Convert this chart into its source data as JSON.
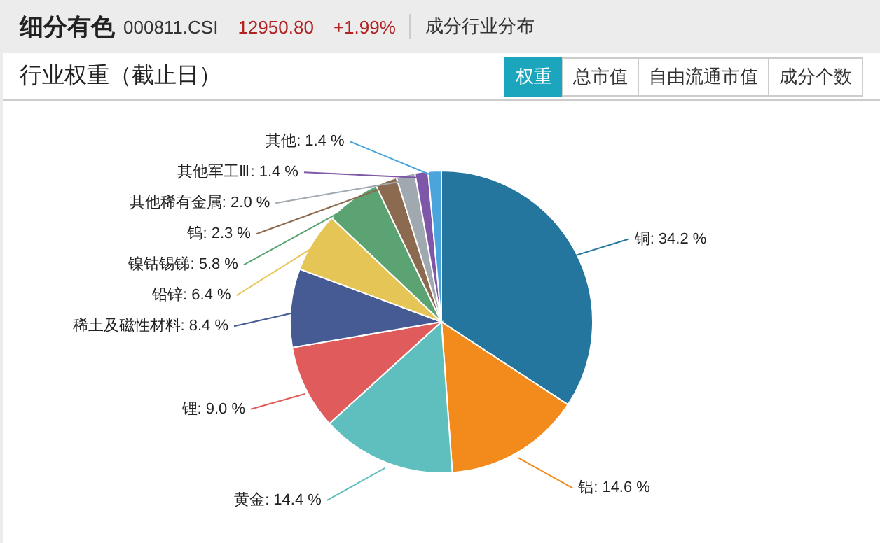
{
  "chart_data": {
    "type": "pie",
    "title": "细分有色",
    "subtitle": "行业权重（截止日）",
    "annotations": [
      "000811.CSI",
      "12950.80",
      "+1.99%",
      "成分行业分布",
      "权重",
      "总市值",
      "自由流通市值",
      "成分个数"
    ],
    "categories": [
      "铜",
      "铝",
      "黄金",
      "锂",
      "稀土及磁性材料",
      "铅锌",
      "镍钴锡锑",
      "钨",
      "其他稀有金属",
      "其他军工Ⅲ",
      "其他"
    ],
    "values": [
      34.2,
      14.6,
      14.4,
      9.0,
      8.4,
      6.4,
      5.8,
      2.3,
      2.0,
      1.4,
      1.4
    ],
    "value_labels": [
      "34.2 %",
      "14.6 %",
      "14.4 %",
      "9.0 %",
      "8.4 %",
      "6.4 %",
      "5.8 %",
      "2.3 %",
      "2.0 %",
      "1.4 %",
      "1.4 %"
    ],
    "colors": [
      "#24769f",
      "#f28a1c",
      "#5fbfbf",
      "#e05c5c",
      "#465a93",
      "#e6c557",
      "#5ba372",
      "#8c6a4f",
      "#a0a8b0",
      "#7e57a8",
      "#4aa5dd"
    ]
  }
}
